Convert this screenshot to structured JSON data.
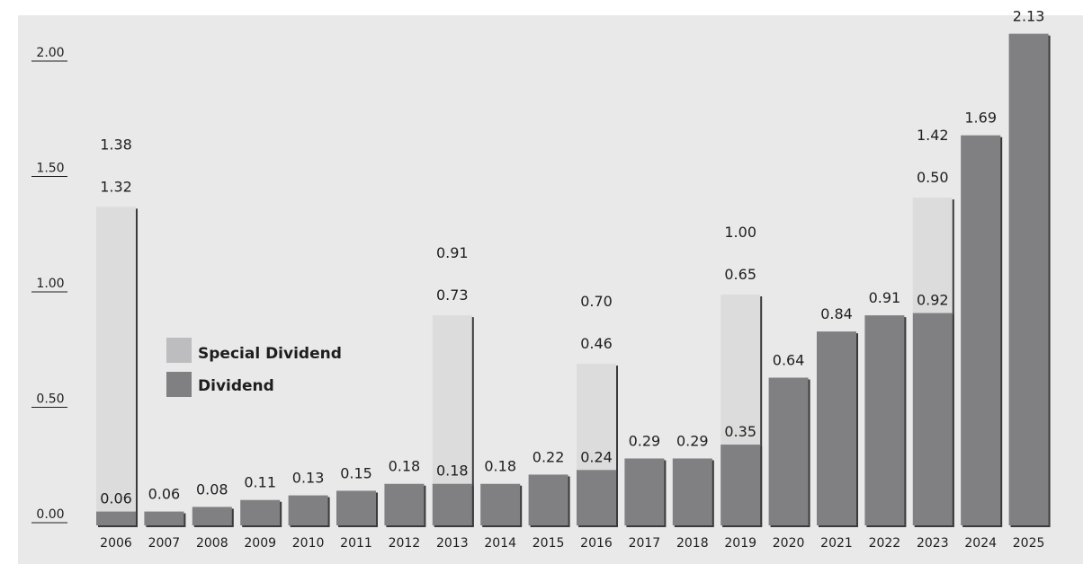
{
  "chart_data": {
    "type": "bar",
    "stacked": true,
    "categories": [
      "2006",
      "2007",
      "2008",
      "2009",
      "2010",
      "2011",
      "2012",
      "2013",
      "2014",
      "2015",
      "2016",
      "2017",
      "2018",
      "2019",
      "2020",
      "2021",
      "2022",
      "2023",
      "2024",
      "2025"
    ],
    "series": [
      {
        "name": "Dividend",
        "values": [
          0.06,
          0.06,
          0.08,
          0.11,
          0.13,
          0.15,
          0.18,
          0.18,
          0.18,
          0.22,
          0.24,
          0.29,
          0.29,
          0.35,
          0.64,
          0.84,
          0.91,
          0.92,
          1.69,
          2.13
        ]
      },
      {
        "name": "Special Dividend",
        "values": [
          1.32,
          0,
          0,
          0,
          0,
          0,
          0,
          0.73,
          0,
          0,
          0.46,
          0,
          0,
          0.65,
          0,
          0,
          0,
          0.5,
          0,
          0
        ]
      }
    ],
    "totals": [
      1.38,
      null,
      null,
      null,
      null,
      null,
      null,
      0.91,
      null,
      null,
      0.7,
      null,
      null,
      1.0,
      null,
      null,
      null,
      1.42,
      null,
      null
    ],
    "y_ticks": [
      "0.00",
      "0.50",
      "1.00",
      "1.50",
      "2.00"
    ],
    "ylim": [
      0,
      2.0
    ],
    "title": "",
    "xlabel": "",
    "ylabel": "",
    "legend_position": "center-left",
    "colors": {
      "Dividend": "#808083",
      "Special Dividend": "#dcdcdd",
      "Special Dividend Legend": "#bdbdbf",
      "shadow": "#3a3a3c",
      "background": "#e9e9ea"
    },
    "grid": false
  }
}
